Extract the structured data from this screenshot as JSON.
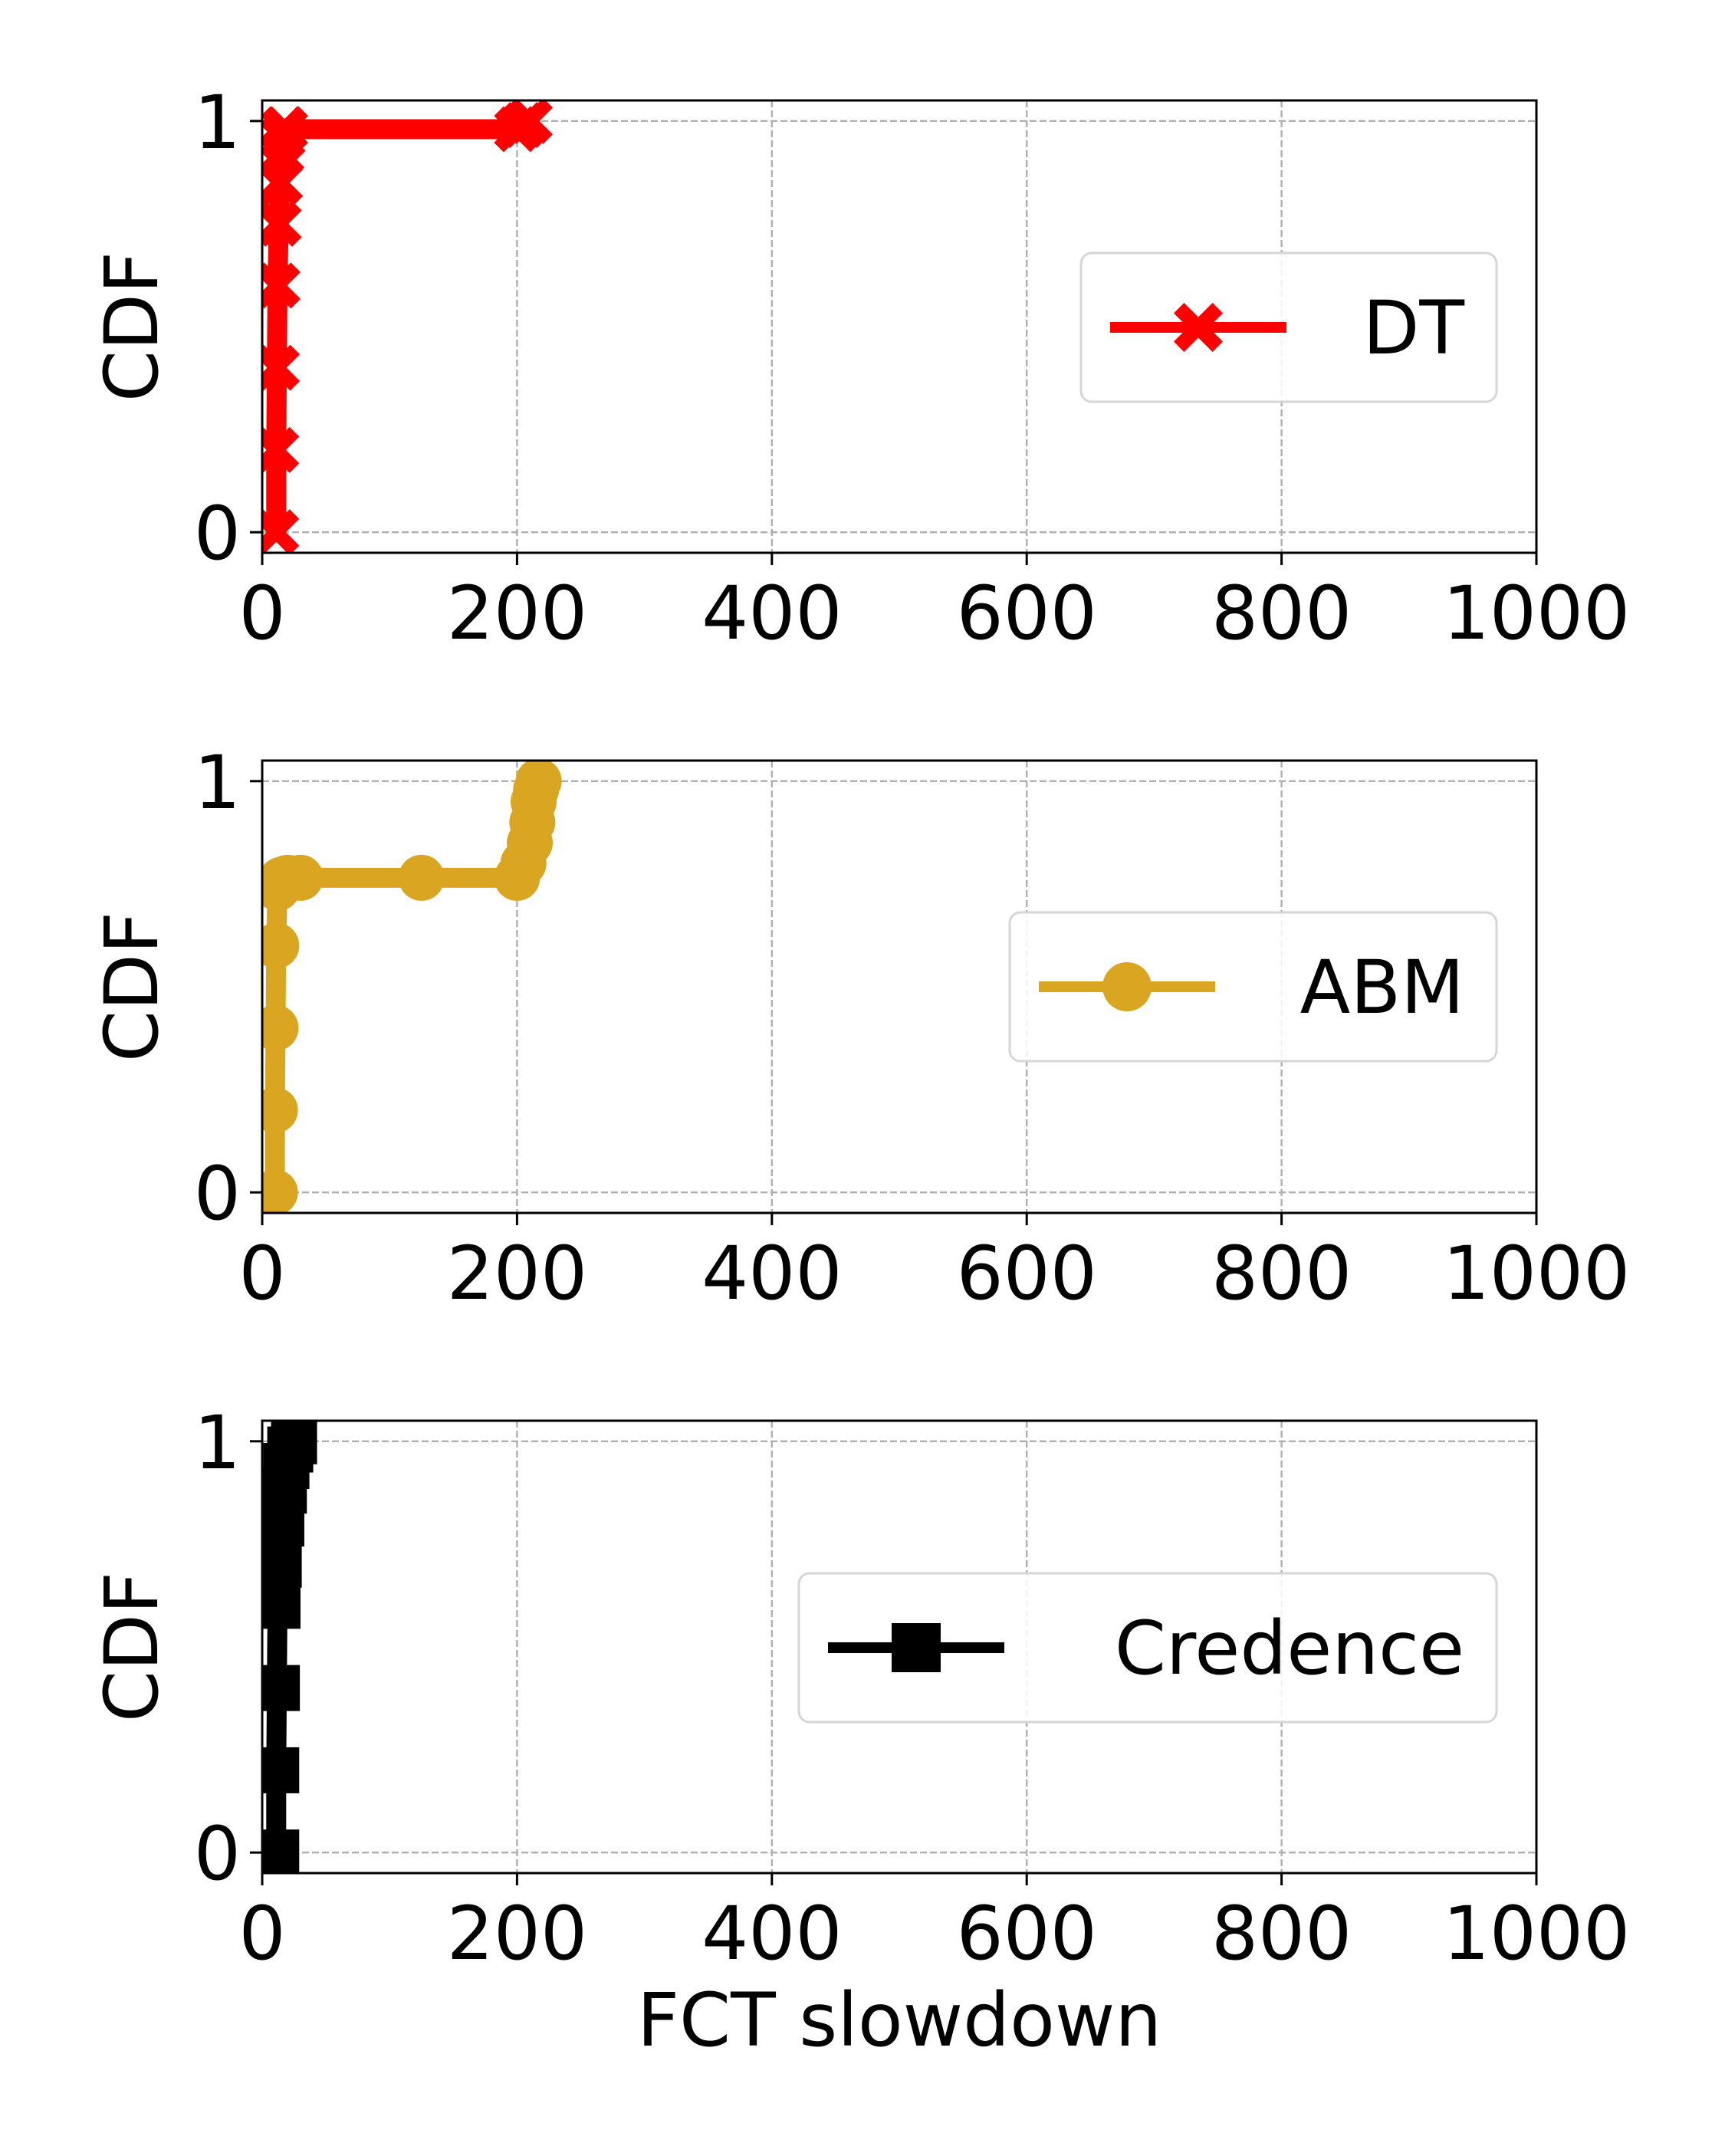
{
  "chart_data": [
    {
      "type": "line",
      "xlabel": "",
      "ylabel": "CDF",
      "xlim": [
        0,
        1000
      ],
      "ylim": [
        -0.05,
        1.05
      ],
      "xticks": [
        "0",
        "200",
        "400",
        "600",
        "800",
        "1000"
      ],
      "yticks": [
        "0",
        "1"
      ],
      "grid": true,
      "legend_position": "right",
      "series": [
        {
          "name": "DT",
          "color": "#ff0000",
          "marker": "x-filled",
          "x": [
            11,
            11,
            11.5,
            12,
            13,
            14,
            15,
            16,
            17,
            18,
            200,
            205,
            210
          ],
          "y": [
            0,
            0.2,
            0.4,
            0.6,
            0.75,
            0.85,
            0.92,
            0.96,
            0.98,
            0.98,
            0.98,
            0.99,
            1.0
          ]
        }
      ]
    },
    {
      "type": "line",
      "xlabel": "",
      "ylabel": "CDF",
      "xlim": [
        0,
        1000
      ],
      "ylim": [
        -0.05,
        1.05
      ],
      "xticks": [
        "0",
        "200",
        "400",
        "600",
        "800",
        "1000"
      ],
      "yticks": [
        "0",
        "1"
      ],
      "grid": true,
      "legend_position": "right",
      "series": [
        {
          "name": "ABM",
          "color": "#daa520",
          "marker": "circle",
          "x": [
            10,
            10,
            10.5,
            11,
            12,
            15,
            20,
            30,
            125,
            200,
            205,
            210,
            212,
            213,
            215,
            217
          ],
          "y": [
            0,
            0.2,
            0.4,
            0.6,
            0.74,
            0.76,
            0.765,
            0.765,
            0.765,
            0.765,
            0.8,
            0.85,
            0.9,
            0.95,
            0.98,
            1.0
          ]
        }
      ]
    },
    {
      "type": "line",
      "xlabel": "FCT slowdown",
      "ylabel": "CDF",
      "xlim": [
        0,
        1000
      ],
      "ylim": [
        -0.05,
        1.05
      ],
      "xticks": [
        "0",
        "200",
        "400",
        "600",
        "800",
        "1000"
      ],
      "yticks": [
        "0",
        "1"
      ],
      "grid": true,
      "legend_position": "right",
      "series": [
        {
          "name": "Credence",
          "color": "#000000",
          "marker": "square",
          "x": [
            11,
            11,
            11.5,
            12,
            13,
            15,
            17,
            19,
            22,
            25
          ],
          "y": [
            0,
            0.2,
            0.4,
            0.6,
            0.7,
            0.8,
            0.88,
            0.94,
            0.98,
            1.0
          ]
        }
      ]
    }
  ]
}
